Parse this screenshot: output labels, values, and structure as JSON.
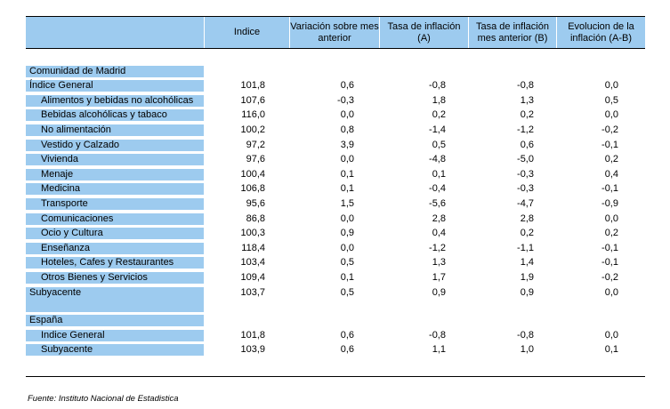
{
  "header": {
    "col0": "",
    "col1": "Indice",
    "col2": "Variación sobre mes anterior",
    "col3": "Tasa de inflación (A)",
    "col4": "Tasa de inflación mes anterior (B)",
    "col5": "Evolucion de la inflación (A-B)"
  },
  "madrid": {
    "section_label": "Comunidad de Madrid",
    "rows": [
      {
        "label": "Índice General",
        "indice": "101,8",
        "variacion": "0,6",
        "tasa_a": "-0,8",
        "tasa_b": "-0,8",
        "evolucion": "0,0"
      },
      {
        "label": "Alimentos y bebidas no alcohólicas",
        "indice": "107,6",
        "variacion": "-0,3",
        "tasa_a": "1,8",
        "tasa_b": "1,3",
        "evolucion": "0,5"
      },
      {
        "label": "Bebidas alcohólicas y tabaco",
        "indice": "116,0",
        "variacion": "0,0",
        "tasa_a": "0,2",
        "tasa_b": "0,2",
        "evolucion": "0,0"
      },
      {
        "label": "No alimentación",
        "indice": "100,2",
        "variacion": "0,8",
        "tasa_a": "-1,4",
        "tasa_b": "-1,2",
        "evolucion": "-0,2"
      },
      {
        "label": "Vestido y Calzado",
        "indice": "97,2",
        "variacion": "3,9",
        "tasa_a": "0,5",
        "tasa_b": "0,6",
        "evolucion": "-0,1"
      },
      {
        "label": "Vivienda",
        "indice": "97,6",
        "variacion": "0,0",
        "tasa_a": "-4,8",
        "tasa_b": "-5,0",
        "evolucion": "0,2"
      },
      {
        "label": "Menaje",
        "indice": "100,4",
        "variacion": "0,1",
        "tasa_a": "0,1",
        "tasa_b": "-0,3",
        "evolucion": "0,4"
      },
      {
        "label": "Medicina",
        "indice": "106,8",
        "variacion": "0,1",
        "tasa_a": "-0,4",
        "tasa_b": "-0,3",
        "evolucion": "-0,1"
      },
      {
        "label": "Transporte",
        "indice": "95,6",
        "variacion": "1,5",
        "tasa_a": "-5,6",
        "tasa_b": "-4,7",
        "evolucion": "-0,9"
      },
      {
        "label": "Comunicaciones",
        "indice": "86,8",
        "variacion": "0,0",
        "tasa_a": "2,8",
        "tasa_b": "2,8",
        "evolucion": "0,0"
      },
      {
        "label": "Ocio y Cultura",
        "indice": "100,3",
        "variacion": "0,9",
        "tasa_a": "0,4",
        "tasa_b": "0,2",
        "evolucion": "0,2"
      },
      {
        "label": "Enseñanza",
        "indice": "118,4",
        "variacion": "0,0",
        "tasa_a": "-1,2",
        "tasa_b": "-1,1",
        "evolucion": "-0,1"
      },
      {
        "label": "Hoteles, Cafes y Restaurantes",
        "indice": "103,4",
        "variacion": "0,5",
        "tasa_a": "1,3",
        "tasa_b": "1,4",
        "evolucion": "-0,1"
      },
      {
        "label": "Otros Bienes y Servicios",
        "indice": "109,4",
        "variacion": "0,1",
        "tasa_a": "1,7",
        "tasa_b": "1,9",
        "evolucion": "-0,2"
      },
      {
        "label": "Subyacente",
        "indice": "103,7",
        "variacion": "0,5",
        "tasa_a": "0,9",
        "tasa_b": "0,9",
        "evolucion": "0,0"
      }
    ]
  },
  "espana": {
    "section_label": "España",
    "rows": [
      {
        "label": "Indice General",
        "indice": "101,8",
        "variacion": "0,6",
        "tasa_a": "-0,8",
        "tasa_b": "-0,8",
        "evolucion": "0,0"
      },
      {
        "label": "Subyacente",
        "indice": "103,9",
        "variacion": "0,6",
        "tasa_a": "1,1",
        "tasa_b": "1,0",
        "evolucion": "0,1"
      }
    ]
  },
  "footer": {
    "source": "Fuente: Instituto Nacional de Estadistica"
  },
  "colors": {
    "label_background": "#9dcbef",
    "rule": "#000000"
  }
}
